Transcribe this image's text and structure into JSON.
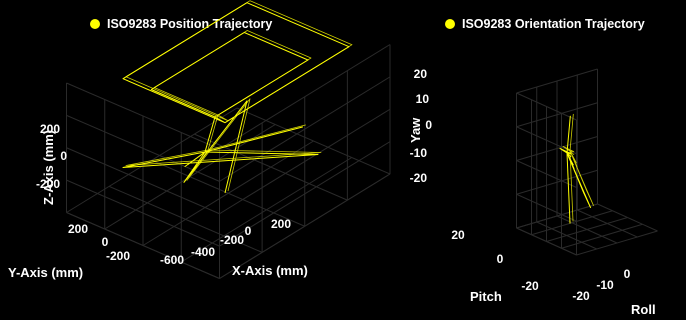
{
  "chart_data": [
    {
      "type": "line3d",
      "legend": "ISO9283 Position Trajectory",
      "xlabel": "X-Axis (mm)",
      "ylabel": "Y-Axis (mm)",
      "zlabel": "Z-Axis (mm)",
      "xticks": [
        "-600",
        "-400",
        "-200",
        "0",
        "200"
      ],
      "yticks": [
        "200",
        "0",
        "-200"
      ],
      "zticks": [
        "200",
        "0",
        "-200"
      ],
      "line_color": "#ffff00",
      "grid": true,
      "legend_position": "top",
      "series": [
        {
          "points": [
            [
              200,
              200,
              380
            ],
            [
              200,
              -200,
              380
            ],
            [
              -600,
              -200,
              380
            ],
            [
              -600,
              200,
              380
            ],
            [
              200,
              200,
              380
            ],
            [
              100,
              100,
              300
            ],
            [
              100,
              -150,
              300
            ],
            [
              -500,
              -150,
              300
            ],
            [
              -500,
              100,
              300
            ],
            [
              100,
              100,
              300
            ],
            [
              0,
              0,
              0
            ],
            [
              200,
              -200,
              -100
            ],
            [
              -400,
              200,
              -100
            ],
            [
              0,
              0,
              0
            ],
            [
              -200,
              -200,
              -300
            ],
            [
              0,
              0,
              0
            ],
            [
              -300,
              200,
              100
            ],
            [
              0,
              0,
              0
            ],
            [
              300,
              100,
              50
            ],
            [
              -600,
              -200,
              -150
            ],
            [
              200,
              200,
              0
            ]
          ]
        }
      ]
    },
    {
      "type": "line3d",
      "legend": "ISO9283 Orientation Trajectory",
      "xlabel": "Roll",
      "ylabel": "Pitch",
      "zlabel": "Yaw",
      "xticks": [
        "-20",
        "-10",
        "0"
      ],
      "yticks": [
        "20",
        "0",
        "-20"
      ],
      "zticks": [
        "20",
        "10",
        "0",
        "-10",
        "-20"
      ],
      "line_color": "#ffff00",
      "grid": true,
      "legend_position": "top",
      "series": [
        {
          "points": [
            [
              0,
              0,
              0
            ],
            [
              -20,
              25,
              6
            ],
            [
              0,
              0,
              0
            ],
            [
              -10,
              20,
              8
            ],
            [
              -12,
              15,
              6
            ],
            [
              0,
              0,
              0
            ],
            [
              -5,
              5,
              16
            ],
            [
              0,
              0,
              0
            ],
            [
              10,
              -20,
              -12
            ],
            [
              0,
              0,
              0
            ],
            [
              15,
              -25,
              -10
            ],
            [
              0,
              0,
              0
            ],
            [
              -5,
              -10,
              -20
            ],
            [
              -3,
              -8,
              -15
            ],
            [
              0,
              0,
              0
            ],
            [
              -15,
              20,
              -18
            ],
            [
              0,
              0,
              0
            ]
          ]
        }
      ]
    }
  ]
}
